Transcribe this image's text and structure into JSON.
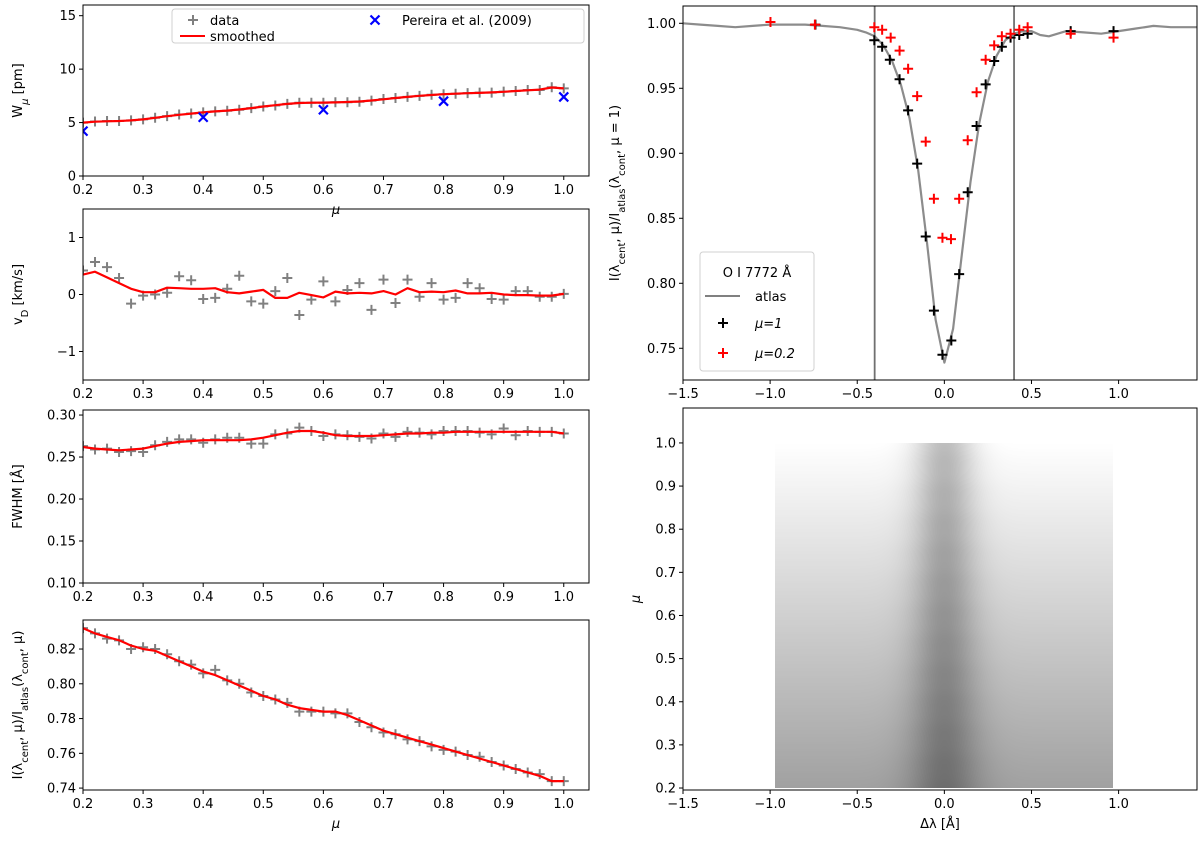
{
  "mu_grid": [
    0.2,
    0.22,
    0.24,
    0.26,
    0.28,
    0.3,
    0.32,
    0.34,
    0.36,
    0.38,
    0.4,
    0.42,
    0.44,
    0.46,
    0.48,
    0.5,
    0.52,
    0.54,
    0.56,
    0.58,
    0.6,
    0.62,
    0.64,
    0.66,
    0.68,
    0.7,
    0.72,
    0.74,
    0.76,
    0.78,
    0.8,
    0.82,
    0.84,
    0.86,
    0.88,
    0.9,
    0.92,
    0.94,
    0.96,
    0.98,
    1.0
  ],
  "chart_data": [
    {
      "id": "equivalent-width",
      "type": "scatter",
      "xlabel": [
        {
          "t": "μ",
          "i": true
        }
      ],
      "ylabel": [
        {
          "t": "W"
        },
        {
          "t": "μ",
          "sub": true,
          "i": true
        },
        {
          "t": " [pm]"
        }
      ],
      "xlim": [
        0.2,
        1.042
      ],
      "ylim": [
        0,
        16
      ],
      "xticks": [
        [
          0.2,
          "0.2"
        ],
        [
          0.3,
          "0.3"
        ],
        [
          0.4,
          "0.4"
        ],
        [
          0.5,
          "0.5"
        ],
        [
          0.6,
          "0.6"
        ],
        [
          0.7,
          "0.7"
        ],
        [
          0.8,
          "0.8"
        ],
        [
          0.9,
          "0.9"
        ],
        [
          1.0,
          "1.0"
        ]
      ],
      "yticks": [
        [
          0,
          "0"
        ],
        [
          5,
          "5"
        ],
        [
          10,
          "10"
        ],
        [
          15,
          "15"
        ]
      ],
      "legend": {
        "placement": "top-right",
        "entries": [
          "data",
          "smoothed",
          "Pereira et al. (2009)"
        ]
      },
      "series": [
        {
          "name": "data",
          "marker": "plus",
          "color": "#808080",
          "x": "mu_grid",
          "y": [
            5.0,
            5.1,
            5.15,
            5.15,
            5.2,
            5.3,
            5.45,
            5.6,
            5.75,
            5.85,
            5.95,
            6.05,
            6.1,
            6.2,
            6.35,
            6.5,
            6.6,
            6.75,
            6.85,
            6.85,
            6.85,
            6.9,
            6.9,
            6.95,
            7.05,
            7.2,
            7.3,
            7.4,
            7.5,
            7.6,
            7.65,
            7.7,
            7.75,
            7.8,
            7.8,
            7.9,
            7.95,
            8.05,
            8.05,
            8.3,
            8.2
          ]
        },
        {
          "name": "smoothed",
          "marker": "line",
          "color": "#ff0000",
          "x": "mu_grid",
          "y": [
            5.0,
            5.08,
            5.12,
            5.15,
            5.2,
            5.3,
            5.45,
            5.6,
            5.73,
            5.84,
            5.95,
            6.04,
            6.12,
            6.22,
            6.35,
            6.5,
            6.62,
            6.75,
            6.83,
            6.86,
            6.87,
            6.89,
            6.92,
            6.97,
            7.06,
            7.18,
            7.3,
            7.4,
            7.5,
            7.58,
            7.65,
            7.7,
            7.75,
            7.78,
            7.82,
            7.88,
            7.95,
            8.02,
            8.08,
            8.28,
            8.2
          ]
        },
        {
          "name": "Pereira et al. (2009)",
          "marker": "x",
          "color": "#0000ff",
          "x": [
            0.2,
            0.4,
            0.6,
            0.8,
            1.0
          ],
          "y": [
            4.2,
            5.5,
            6.2,
            7.0,
            7.4
          ]
        }
      ]
    },
    {
      "id": "doppler-velocity",
      "type": "scatter",
      "xlabel": null,
      "ylabel": [
        {
          "t": "v"
        },
        {
          "t": "D",
          "sub": true
        },
        {
          "t": " [km/s]"
        }
      ],
      "xlim": [
        0.2,
        1.042
      ],
      "ylim": [
        -1.5,
        1.5
      ],
      "xticks": [
        [
          0.2,
          "0.2"
        ],
        [
          0.3,
          "0.3"
        ],
        [
          0.4,
          "0.4"
        ],
        [
          0.5,
          "0.5"
        ],
        [
          0.6,
          "0.6"
        ],
        [
          0.7,
          "0.7"
        ],
        [
          0.8,
          "0.8"
        ],
        [
          0.9,
          "0.9"
        ],
        [
          1.0,
          "1.0"
        ]
      ],
      "yticks": [
        [
          -1,
          "−1"
        ],
        [
          0,
          "0"
        ],
        [
          1,
          "1"
        ]
      ],
      "series": [
        {
          "name": "data",
          "marker": "plus",
          "color": "#808080",
          "x": "mu_grid",
          "y": [
            0.42,
            0.57,
            0.48,
            0.29,
            -0.16,
            -0.02,
            0.0,
            0.03,
            0.32,
            0.25,
            -0.08,
            -0.06,
            0.1,
            0.33,
            -0.12,
            -0.16,
            0.06,
            0.29,
            -0.36,
            -0.09,
            0.23,
            -0.12,
            0.08,
            0.2,
            -0.27,
            0.26,
            -0.15,
            0.26,
            -0.04,
            0.2,
            -0.09,
            -0.06,
            0.2,
            0.11,
            -0.08,
            -0.09,
            0.06,
            0.06,
            -0.04,
            -0.04,
            0.01
          ]
        },
        {
          "name": "smoothed",
          "marker": "line",
          "color": "#ff0000",
          "x": "mu_grid",
          "y": [
            0.35,
            0.4,
            0.3,
            0.2,
            0.1,
            0.04,
            0.04,
            0.12,
            0.11,
            0.1,
            0.1,
            0.11,
            0.04,
            0.02,
            0.05,
            0.08,
            -0.06,
            -0.06,
            0.03,
            -0.01,
            -0.05,
            0.05,
            0.02,
            0.03,
            0.02,
            0.06,
            0.0,
            0.11,
            0.04,
            0.05,
            0.04,
            0.07,
            0.02,
            0.02,
            0.03,
            0.0,
            -0.01,
            -0.01,
            -0.02,
            -0.02,
            0.01
          ]
        }
      ]
    },
    {
      "id": "fwhm",
      "type": "scatter",
      "xlabel": null,
      "ylabel": [
        {
          "t": "FWHM [Å]"
        }
      ],
      "xlim": [
        0.2,
        1.042
      ],
      "ylim": [
        0.1,
        0.306
      ],
      "xticks": [
        [
          0.2,
          "0.2"
        ],
        [
          0.3,
          "0.3"
        ],
        [
          0.4,
          "0.4"
        ],
        [
          0.5,
          "0.5"
        ],
        [
          0.6,
          "0.6"
        ],
        [
          0.7,
          "0.7"
        ],
        [
          0.8,
          "0.8"
        ],
        [
          0.9,
          "0.9"
        ],
        [
          1.0,
          "1.0"
        ]
      ],
      "yticks": [
        [
          0.1,
          "0.10"
        ],
        [
          0.15,
          "0.15"
        ],
        [
          0.2,
          "0.20"
        ],
        [
          0.25,
          "0.25"
        ],
        [
          0.3,
          "0.30"
        ]
      ],
      "series": [
        {
          "name": "data",
          "marker": "plus",
          "color": "#808080",
          "x": "mu_grid",
          "y": [
            0.263,
            0.259,
            0.26,
            0.256,
            0.257,
            0.256,
            0.264,
            0.268,
            0.271,
            0.271,
            0.267,
            0.271,
            0.273,
            0.273,
            0.266,
            0.266,
            0.277,
            0.278,
            0.285,
            0.281,
            0.275,
            0.277,
            0.276,
            0.274,
            0.272,
            0.278,
            0.274,
            0.28,
            0.279,
            0.277,
            0.281,
            0.281,
            0.281,
            0.279,
            0.277,
            0.284,
            0.276,
            0.281,
            0.28,
            0.28,
            0.278
          ]
        },
        {
          "name": "smoothed",
          "marker": "line",
          "color": "#ff0000",
          "x": "mu_grid",
          "y": [
            0.262,
            0.26,
            0.259,
            0.258,
            0.259,
            0.26,
            0.263,
            0.266,
            0.268,
            0.269,
            0.27,
            0.27,
            0.27,
            0.27,
            0.271,
            0.273,
            0.276,
            0.279,
            0.281,
            0.281,
            0.279,
            0.276,
            0.275,
            0.275,
            0.275,
            0.276,
            0.277,
            0.278,
            0.278,
            0.279,
            0.279,
            0.28,
            0.28,
            0.28,
            0.28,
            0.28,
            0.28,
            0.28,
            0.28,
            0.28,
            0.278
          ]
        }
      ]
    },
    {
      "id": "central-intensity",
      "type": "scatter",
      "xlabel": [
        {
          "t": "μ",
          "i": true
        }
      ],
      "ylabel": [
        {
          "t": "I(λ"
        },
        {
          "t": "cent",
          "sub": true
        },
        {
          "t": ", μ)/I"
        },
        {
          "t": "atlas",
          "sub": true
        },
        {
          "t": "(λ"
        },
        {
          "t": "cont",
          "sub": true
        },
        {
          "t": ", μ)"
        }
      ],
      "xlim": [
        0.2,
        1.042
      ],
      "ylim": [
        0.7389,
        0.8367
      ],
      "xticks": [
        [
          0.2,
          "0.2"
        ],
        [
          0.3,
          "0.3"
        ],
        [
          0.4,
          "0.4"
        ],
        [
          0.5,
          "0.5"
        ],
        [
          0.6,
          "0.6"
        ],
        [
          0.7,
          "0.7"
        ],
        [
          0.8,
          "0.8"
        ],
        [
          0.9,
          "0.9"
        ],
        [
          1.0,
          "1.0"
        ]
      ],
      "yticks": [
        [
          0.74,
          "0.74"
        ],
        [
          0.76,
          "0.76"
        ],
        [
          0.78,
          "0.78"
        ],
        [
          0.8,
          "0.80"
        ],
        [
          0.82,
          "0.82"
        ]
      ],
      "series": [
        {
          "name": "data",
          "marker": "plus",
          "color": "#808080",
          "x": "mu_grid",
          "y": [
            0.832,
            0.829,
            0.826,
            0.825,
            0.82,
            0.821,
            0.82,
            0.817,
            0.813,
            0.811,
            0.806,
            0.808,
            0.802,
            0.8,
            0.795,
            0.793,
            0.791,
            0.789,
            0.784,
            0.784,
            0.784,
            0.783,
            0.783,
            0.778,
            0.775,
            0.772,
            0.771,
            0.768,
            0.767,
            0.764,
            0.762,
            0.761,
            0.759,
            0.758,
            0.755,
            0.753,
            0.751,
            0.749,
            0.748,
            0.744,
            0.744
          ]
        },
        {
          "name": "smoothed",
          "marker": "line",
          "color": "#ff0000",
          "x": "mu_grid",
          "y": [
            0.832,
            0.829,
            0.827,
            0.825,
            0.822,
            0.82,
            0.819,
            0.816,
            0.813,
            0.81,
            0.807,
            0.805,
            0.802,
            0.799,
            0.796,
            0.793,
            0.791,
            0.788,
            0.786,
            0.785,
            0.784,
            0.784,
            0.782,
            0.779,
            0.776,
            0.773,
            0.771,
            0.769,
            0.767,
            0.765,
            0.763,
            0.761,
            0.759,
            0.757,
            0.755,
            0.753,
            0.751,
            0.749,
            0.747,
            0.744,
            0.744
          ]
        }
      ]
    },
    {
      "id": "line-profile",
      "type": "line",
      "xlabel": null,
      "ylabel": [
        {
          "t": "I(λ"
        },
        {
          "t": "cent",
          "sub": true
        },
        {
          "t": ", μ)/I"
        },
        {
          "t": "atlas",
          "sub": true
        },
        {
          "t": "(λ"
        },
        {
          "t": "cont",
          "sub": true
        },
        {
          "t": ", μ = 1)"
        }
      ],
      "xlim": [
        -1.5,
        1.45
      ],
      "ylim": [
        0.7256,
        1.0133
      ],
      "xticks": [
        [
          -1.5,
          "−1.5"
        ],
        [
          -1.0,
          "−1.0"
        ],
        [
          -0.5,
          "−0.5"
        ],
        [
          0.0,
          "0.0"
        ],
        [
          0.5,
          "0.5"
        ],
        [
          1.0,
          "1.0"
        ]
      ],
      "yticks": [
        [
          0.75,
          "0.75"
        ],
        [
          0.8,
          "0.80"
        ],
        [
          0.85,
          "0.85"
        ],
        [
          0.9,
          "0.90"
        ],
        [
          0.95,
          "0.95"
        ],
        [
          1.0,
          "1.00"
        ]
      ],
      "vlines": [
        -0.4,
        0.4
      ],
      "legend": {
        "placement": "lower-left",
        "title": "O I 7772 Å",
        "entries": [
          "atlas",
          "μ=1",
          "μ=0.2"
        ]
      },
      "series": [
        {
          "name": "atlas",
          "marker": "curve",
          "color": "#808080",
          "x": [
            -1.5,
            -1.4,
            -1.3,
            -1.2,
            -1.1,
            -1.0,
            -0.9,
            -0.8,
            -0.7,
            -0.6,
            -0.5,
            -0.45,
            -0.4,
            -0.35,
            -0.3,
            -0.25,
            -0.2,
            -0.15,
            -0.1,
            -0.05,
            0.0,
            0.05,
            0.1,
            0.15,
            0.2,
            0.25,
            0.3,
            0.35,
            0.4,
            0.45,
            0.5,
            0.55,
            0.6,
            0.65,
            0.7,
            0.8,
            0.9,
            1.0,
            1.1,
            1.2,
            1.3,
            1.45
          ],
          "y": [
            1.0,
            0.999,
            0.998,
            0.997,
            0.998,
            0.999,
            0.999,
            0.999,
            0.998,
            0.997,
            0.995,
            0.993,
            0.99,
            0.983,
            0.971,
            0.953,
            0.927,
            0.887,
            0.832,
            0.772,
            0.739,
            0.765,
            0.822,
            0.878,
            0.923,
            0.955,
            0.975,
            0.987,
            0.992,
            0.994,
            0.994,
            0.991,
            0.99,
            0.992,
            0.994,
            0.993,
            0.992,
            0.994,
            0.996,
            0.998,
            0.997,
            0.997
          ]
        },
        {
          "name": "μ=1",
          "marker": "plus",
          "color": "#000000",
          "x": [
            -0.74,
            -0.402,
            -0.357,
            -0.313,
            -0.257,
            -0.208,
            -0.156,
            -0.107,
            -0.06,
            -0.011,
            0.04,
            0.085,
            0.134,
            0.185,
            0.237,
            0.286,
            0.33,
            0.38,
            0.43,
            0.478,
            0.725,
            0.971
          ],
          "y": [
            0.999,
            0.987,
            0.982,
            0.972,
            0.957,
            0.933,
            0.892,
            0.836,
            0.779,
            0.745,
            0.756,
            0.807,
            0.87,
            0.921,
            0.953,
            0.971,
            0.982,
            0.989,
            0.991,
            0.992,
            0.994,
            0.994
          ]
        },
        {
          "name": "μ=0.2",
          "marker": "plus",
          "color": "#ff0000",
          "x": [
            -0.998,
            -0.743,
            -0.402,
            -0.357,
            -0.308,
            -0.257,
            -0.208,
            -0.156,
            -0.107,
            -0.06,
            -0.011,
            0.038,
            0.085,
            0.134,
            0.185,
            0.237,
            0.286,
            0.33,
            0.38,
            0.43,
            0.478,
            0.725,
            0.971
          ],
          "y": [
            1.001,
            0.999,
            0.997,
            0.995,
            0.989,
            0.979,
            0.965,
            0.944,
            0.909,
            0.865,
            0.835,
            0.834,
            0.865,
            0.91,
            0.947,
            0.972,
            0.983,
            0.99,
            0.992,
            0.995,
            0.997,
            0.992,
            0.989
          ]
        }
      ]
    },
    {
      "id": "intensity-map",
      "type": "heatmap",
      "xlabel": [
        {
          "t": "Δλ [Å]"
        }
      ],
      "ylabel": [
        {
          "t": "μ",
          "i": true
        }
      ],
      "xlim": [
        -1.5,
        1.45
      ],
      "ylim": [
        0.1954,
        1.081
      ],
      "xticks": [
        [
          -1.5,
          "−1.5"
        ],
        [
          -1.0,
          "−1.0"
        ],
        [
          -0.5,
          "−0.5"
        ],
        [
          0.0,
          "0.0"
        ],
        [
          0.5,
          "0.5"
        ],
        [
          1.0,
          "1.0"
        ]
      ],
      "yticks": [
        [
          0.2,
          "0.2"
        ],
        [
          0.3,
          "0.3"
        ],
        [
          0.4,
          "0.4"
        ],
        [
          0.5,
          "0.5"
        ],
        [
          0.6,
          "0.6"
        ],
        [
          0.7,
          "0.7"
        ],
        [
          0.8,
          "0.8"
        ],
        [
          0.9,
          "0.9"
        ],
        [
          1.0,
          "1.0"
        ]
      ],
      "image": {
        "x_extent": [
          -0.97,
          0.97
        ],
        "y_extent": [
          0.2,
          1.0
        ],
        "colormap": "gray",
        "continuum_at_mu": [
          [
            0.2,
            0.63
          ],
          [
            1.0,
            1.0
          ]
        ],
        "line_depth": 0.26,
        "line_width_angstrom": 0.12
      }
    }
  ]
}
